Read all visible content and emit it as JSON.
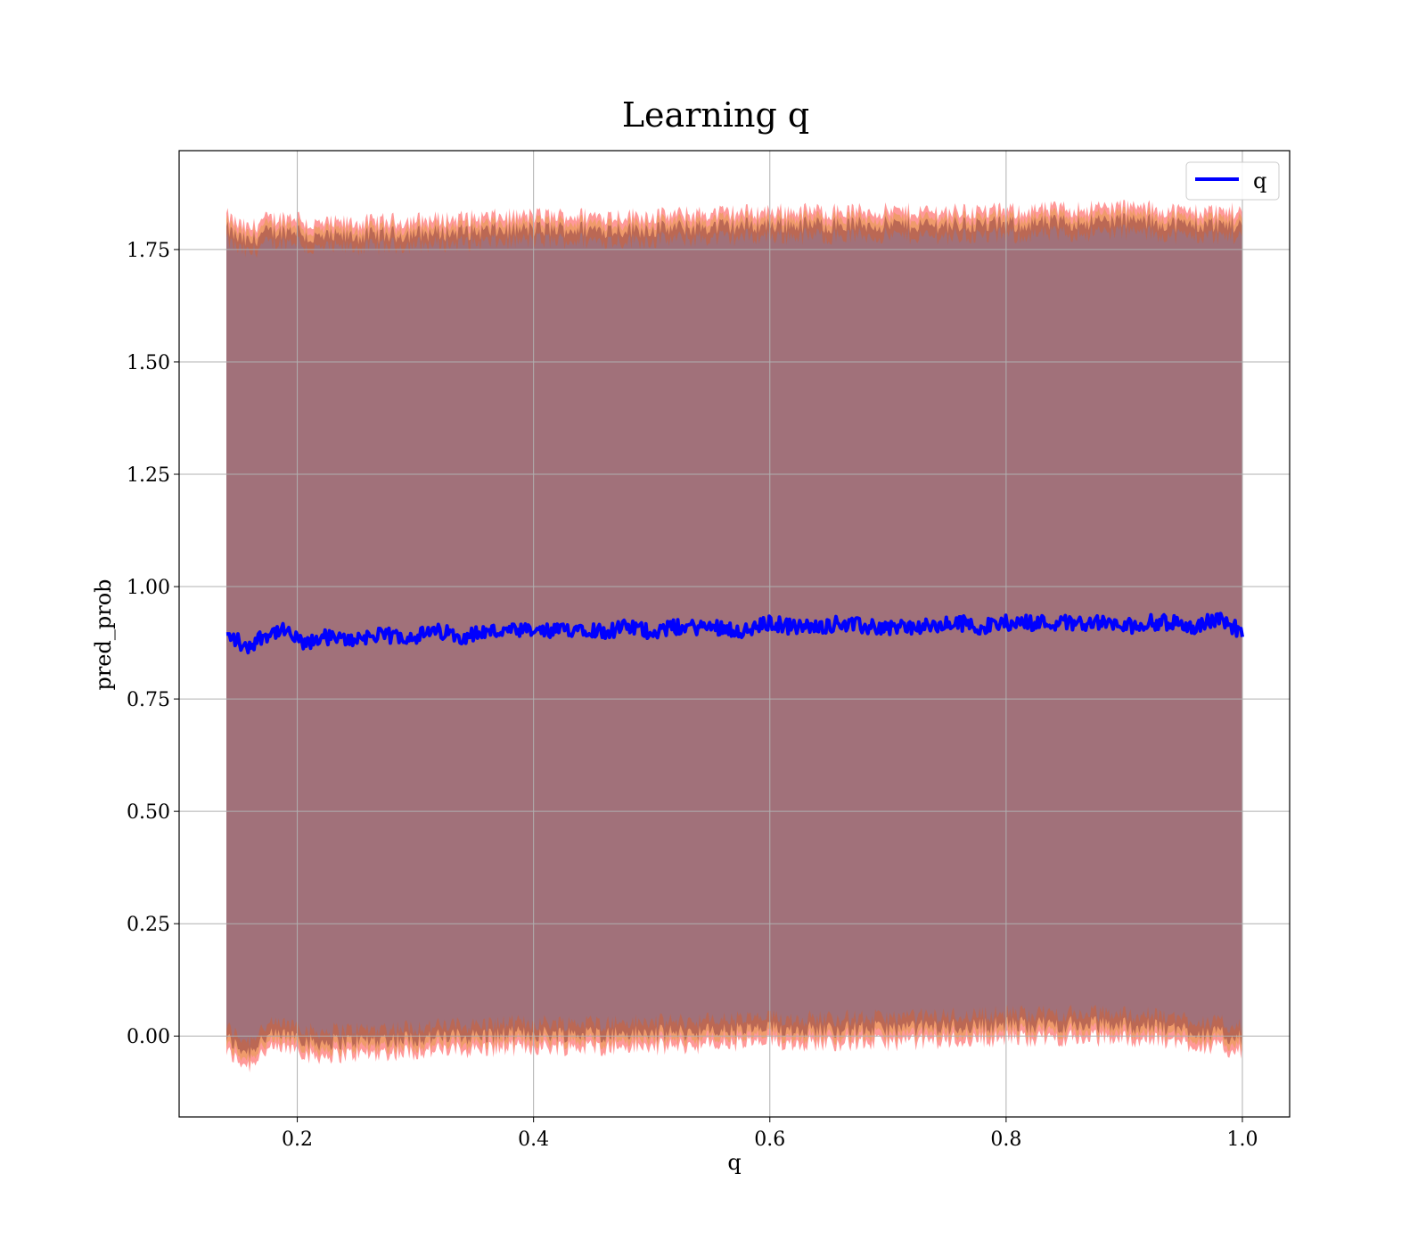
{
  "chart_data": {
    "type": "line",
    "title": "Learning q",
    "xlabel": "q",
    "ylabel": "pred_prob",
    "xlim": [
      0.1,
      1.04
    ],
    "ylim": [
      -0.18,
      1.97
    ],
    "xticks": [
      0.2,
      0.4,
      0.6,
      0.8,
      1.0
    ],
    "xtick_labels": [
      "0.2",
      "0.4",
      "0.6",
      "0.8",
      "1.0"
    ],
    "yticks": [
      0.0,
      0.25,
      0.5,
      0.75,
      1.0,
      1.25,
      1.5,
      1.75
    ],
    "ytick_labels": [
      "0.00",
      "0.25",
      "0.50",
      "0.75",
      "1.00",
      "1.25",
      "1.50",
      "1.75"
    ],
    "grid": true,
    "legend_position": "top-right",
    "colors": {
      "line": "#0000ff",
      "band_outer": "#ff0000",
      "band_middle": "#d4a017",
      "band_inner": "#5a0a2a",
      "fill_main": "#a1717a"
    },
    "series": [
      {
        "name": "q",
        "x": [
          0.14,
          0.15,
          0.155,
          0.16,
          0.17,
          0.18,
          0.19,
          0.2,
          0.21,
          0.22,
          0.24,
          0.26,
          0.28,
          0.3,
          0.32,
          0.34,
          0.36,
          0.38,
          0.4,
          0.42,
          0.44,
          0.46,
          0.48,
          0.5,
          0.52,
          0.54,
          0.56,
          0.58,
          0.6,
          0.62,
          0.64,
          0.66,
          0.68,
          0.7,
          0.72,
          0.74,
          0.76,
          0.78,
          0.8,
          0.82,
          0.84,
          0.86,
          0.88,
          0.9,
          0.92,
          0.94,
          0.96,
          0.98,
          1.0
        ],
        "y": [
          0.89,
          0.88,
          0.86,
          0.87,
          0.89,
          0.9,
          0.9,
          0.88,
          0.87,
          0.89,
          0.88,
          0.89,
          0.89,
          0.89,
          0.9,
          0.89,
          0.9,
          0.9,
          0.9,
          0.9,
          0.91,
          0.9,
          0.91,
          0.9,
          0.91,
          0.91,
          0.91,
          0.9,
          0.92,
          0.91,
          0.91,
          0.92,
          0.91,
          0.91,
          0.91,
          0.91,
          0.92,
          0.91,
          0.92,
          0.92,
          0.92,
          0.92,
          0.92,
          0.91,
          0.92,
          0.92,
          0.91,
          0.93,
          0.9
        ]
      }
    ],
    "band_upper": {
      "x": [
        0.14,
        0.15,
        0.16,
        0.17,
        0.2,
        0.21,
        0.3,
        0.4,
        0.5,
        0.6,
        0.7,
        0.8,
        0.9,
        0.95,
        1.0
      ],
      "y": [
        1.81,
        1.79,
        1.78,
        1.8,
        1.81,
        1.79,
        1.8,
        1.81,
        1.81,
        1.82,
        1.82,
        1.82,
        1.83,
        1.82,
        1.82
      ]
    },
    "band_lower": {
      "x": [
        0.14,
        0.15,
        0.16,
        0.17,
        0.2,
        0.21,
        0.3,
        0.4,
        0.5,
        0.6,
        0.7,
        0.8,
        0.9,
        0.95,
        1.0
      ],
      "y": [
        -0.02,
        -0.04,
        -0.05,
        -0.02,
        -0.01,
        -0.03,
        -0.02,
        -0.01,
        -0.01,
        0.0,
        0.0,
        0.01,
        0.01,
        0.0,
        -0.02
      ]
    }
  }
}
